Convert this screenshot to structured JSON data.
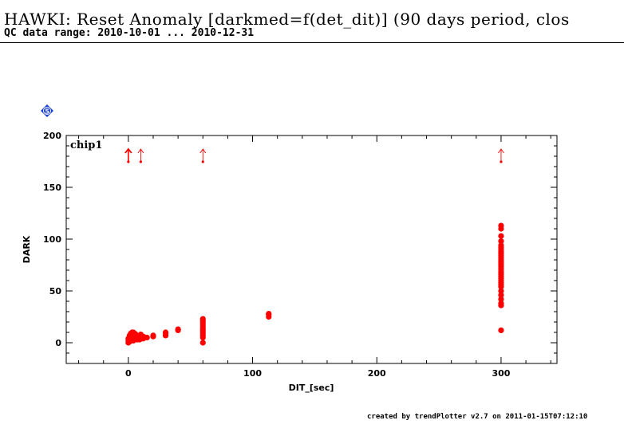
{
  "header": {
    "title": "HAWKI: Reset Anomaly [darkmed=f(det_dit)] (90 days period, clos",
    "subtitle": "QC data range: 2010-10-01 ... 2010-12-31"
  },
  "footer": {
    "text": "created by trendPlotter v2.7 on 2011-01-15T07:12:10"
  },
  "badge": {
    "label": "5",
    "color": "#1a3fd1"
  },
  "colors": {
    "marker": "#ff0000"
  },
  "chart_data": {
    "type": "scatter",
    "title": "",
    "panel_label": "chip1",
    "xlabel": "DIT_[sec]",
    "ylabel": "DARK",
    "xlim": [
      -50,
      345
    ],
    "ylim": [
      -20,
      200
    ],
    "xticks": [
      0,
      100,
      200,
      300
    ],
    "yticks": [
      0,
      50,
      100,
      150,
      200
    ],
    "grid": false,
    "series": [
      {
        "points": [
          [
            0,
            0
          ],
          [
            0,
            2
          ],
          [
            0,
            4
          ],
          [
            1,
            1
          ],
          [
            1,
            3
          ],
          [
            1,
            5
          ],
          [
            1,
            7
          ],
          [
            2,
            2
          ],
          [
            2,
            4
          ],
          [
            2,
            6
          ],
          [
            2,
            8
          ],
          [
            2,
            9
          ],
          [
            3,
            3
          ],
          [
            3,
            5
          ],
          [
            3,
            7
          ],
          [
            3,
            9
          ],
          [
            3,
            10
          ],
          [
            4,
            2
          ],
          [
            4,
            4
          ],
          [
            4,
            6
          ],
          [
            4,
            8
          ],
          [
            4,
            10
          ],
          [
            5,
            3
          ],
          [
            5,
            5
          ],
          [
            5,
            7
          ],
          [
            5,
            9
          ],
          [
            6,
            4
          ],
          [
            6,
            6
          ],
          [
            6,
            8
          ],
          [
            7,
            3
          ],
          [
            7,
            5
          ],
          [
            8,
            4
          ],
          [
            8,
            6
          ],
          [
            9,
            3
          ],
          [
            9,
            5
          ],
          [
            10,
            4
          ],
          [
            10,
            6
          ],
          [
            10,
            8
          ],
          [
            12,
            4
          ],
          [
            12,
            6
          ],
          [
            15,
            5
          ],
          [
            20,
            6
          ],
          [
            20,
            7
          ],
          [
            30,
            7
          ],
          [
            30,
            9
          ],
          [
            30,
            10
          ],
          [
            40,
            12
          ],
          [
            40,
            13
          ],
          [
            60,
            0
          ],
          [
            60,
            5
          ],
          [
            60,
            7
          ],
          [
            60,
            9
          ],
          [
            60,
            11
          ],
          [
            60,
            13
          ],
          [
            60,
            15
          ],
          [
            60,
            17
          ],
          [
            60,
            19
          ],
          [
            60,
            21
          ],
          [
            60,
            23
          ],
          [
            113,
            25
          ],
          [
            113,
            27
          ],
          [
            113,
            28
          ],
          [
            300,
            12
          ],
          [
            300,
            36
          ],
          [
            300,
            38
          ],
          [
            300,
            42
          ],
          [
            300,
            46
          ],
          [
            300,
            50
          ],
          [
            300,
            54
          ],
          [
            300,
            56
          ],
          [
            300,
            58
          ],
          [
            300,
            60
          ],
          [
            300,
            62
          ],
          [
            300,
            64
          ],
          [
            300,
            66
          ],
          [
            300,
            68
          ],
          [
            300,
            70
          ],
          [
            300,
            72
          ],
          [
            300,
            74
          ],
          [
            300,
            76
          ],
          [
            300,
            78
          ],
          [
            300,
            80
          ],
          [
            300,
            82
          ],
          [
            300,
            84
          ],
          [
            300,
            86
          ],
          [
            300,
            88
          ],
          [
            300,
            90
          ],
          [
            300,
            92
          ],
          [
            300,
            94
          ],
          [
            300,
            98
          ],
          [
            300,
            103
          ],
          [
            300,
            110
          ],
          [
            300,
            113
          ]
        ]
      }
    ],
    "outliers_above": [
      {
        "x": 0,
        "style": "filled"
      },
      {
        "x": 10,
        "style": "open"
      },
      {
        "x": 60,
        "style": "open"
      },
      {
        "x": 300,
        "style": "open"
      }
    ]
  }
}
